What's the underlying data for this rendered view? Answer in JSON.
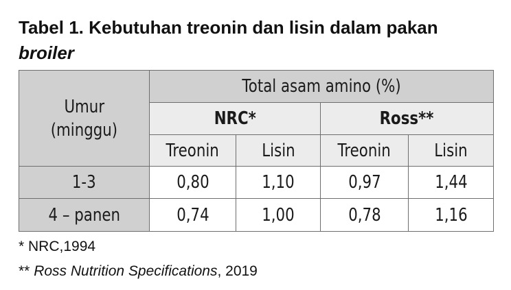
{
  "caption": {
    "title_main": "Tabel 1. Kebutuhan treonin dan lisin dalam pakan",
    "title_italic": "broiler"
  },
  "table": {
    "header_age_line1": "Umur",
    "header_age_line2": "(minggu)",
    "header_total": "Total asam amino (%)",
    "group_nrc": "NRC*",
    "group_ross": "Ross**",
    "nrc_col1": "Treonin",
    "nrc_col2": "Lisin",
    "ross_col1": "Treonin",
    "ross_col2": "Lisin",
    "rows": [
      {
        "age": "1-3",
        "nrc_treonin": "0,80",
        "nrc_lisin": "1,10",
        "ross_treonin": "0,97",
        "ross_lisin": "1,44"
      },
      {
        "age": "4 – panen",
        "nrc_treonin": "0,74",
        "nrc_lisin": "1,00",
        "ross_treonin": "0,78",
        "ross_lisin": "1,16"
      }
    ]
  },
  "notes": {
    "note1": "* NRC,1994",
    "note2_prefix": "** ",
    "note2_italic": "Ross Nutrition Specifications",
    "note2_suffix": ", 2019"
  },
  "colors": {
    "header_gray": "#d0d0d0",
    "subheader_light": "#ececec",
    "border": "#6d6d6d"
  }
}
